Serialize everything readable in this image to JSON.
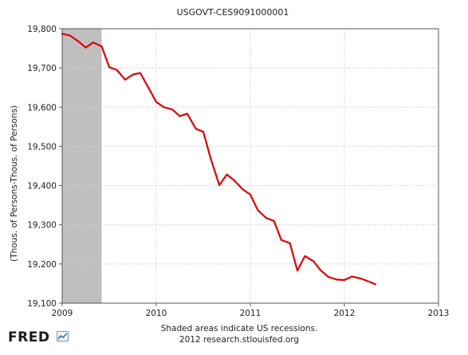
{
  "chart_data": {
    "type": "line",
    "title": "USGOVT-CES9091000001",
    "ylabel": "(Thous. of Persons-Thous. of Persons)",
    "xlabel": "",
    "xlim": [
      2009.0,
      2013.0
    ],
    "ylim": [
      19100,
      19800
    ],
    "x_ticks": [
      {
        "value": 2009,
        "label": "2009"
      },
      {
        "value": 2010,
        "label": "2010"
      },
      {
        "value": 2011,
        "label": "2011"
      },
      {
        "value": 2012,
        "label": "2012"
      },
      {
        "value": 2013,
        "label": "2013"
      }
    ],
    "y_ticks": [
      {
        "value": 19100,
        "label": "19,100"
      },
      {
        "value": 19200,
        "label": "19,200"
      },
      {
        "value": 19300,
        "label": "19,300"
      },
      {
        "value": 19400,
        "label": "19,400"
      },
      {
        "value": 19500,
        "label": "19,500"
      },
      {
        "value": 19600,
        "label": "19,600"
      },
      {
        "value": 19700,
        "label": "19,700"
      },
      {
        "value": 19800,
        "label": "19,800"
      }
    ],
    "grid": true,
    "recession": {
      "start": 2009.0,
      "end": 2009.42,
      "color": "#bfbfbf"
    },
    "series": [
      {
        "color": "#e00000",
        "x": [
          2009.0,
          2009.08,
          2009.17,
          2009.25,
          2009.33,
          2009.42,
          2009.5,
          2009.58,
          2009.67,
          2009.75,
          2009.83,
          2009.92,
          2010.0,
          2010.08,
          2010.17,
          2010.25,
          2010.33,
          2010.42,
          2010.5,
          2010.58,
          2010.67,
          2010.75,
          2010.83,
          2010.92,
          2011.0,
          2011.08,
          2011.17,
          2011.25,
          2011.33,
          2011.42,
          2011.5,
          2011.58,
          2011.67,
          2011.75,
          2011.83,
          2011.92,
          2012.0,
          2012.08,
          2012.17,
          2012.25,
          2012.33
        ],
        "values": [
          19787,
          19783,
          19768,
          19752,
          19765,
          19755,
          19702,
          19695,
          19670,
          19683,
          19687,
          19648,
          19613,
          19600,
          19594,
          19577,
          19583,
          19545,
          19537,
          19468,
          19401,
          19428,
          19413,
          19390,
          19377,
          19337,
          19317,
          19310,
          19261,
          19253,
          19183,
          19220,
          19207,
          19183,
          19167,
          19160,
          19159,
          19168,
          19163,
          19156,
          19148
        ]
      }
    ]
  },
  "footer": {
    "note_line1": "Shaded areas indicate US recessions.",
    "note_line2": "2012 research.stlouisfed.org",
    "logo_text": "FRED"
  }
}
